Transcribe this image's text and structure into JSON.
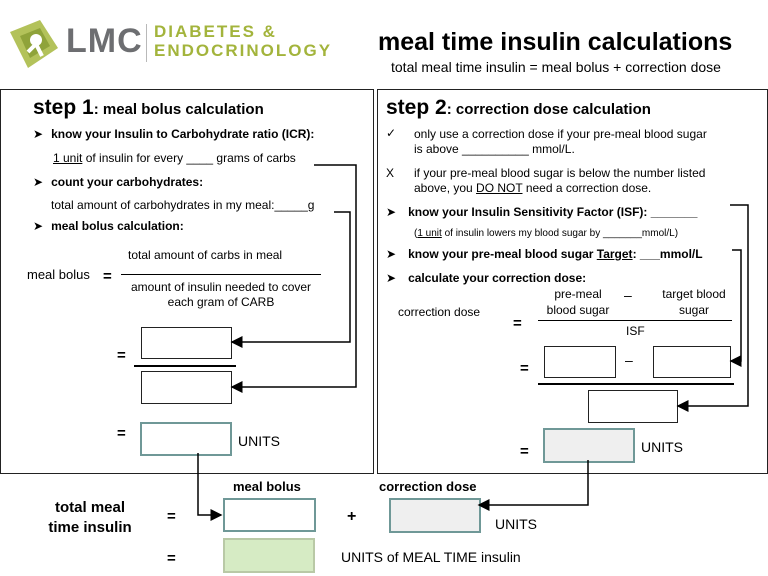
{
  "header": {
    "logo_lmc": "LMC",
    "logo_line1": "DIABETES &",
    "logo_line2": "ENDOCRINOLOGY",
    "title": "meal time insulin calculations",
    "subtitle": "total meal time insulin = meal bolus + correction dose"
  },
  "step1": {
    "heading_num": "step 1",
    "heading_text": ": meal bolus calculation",
    "icr_label": "know your Insulin to Carbohydrate ratio (ICR):",
    "icr_unit": "1 unit",
    "icr_rest": " of insulin for every ____ grams of carbs",
    "count_label": "count your carbohydrates:",
    "count_text": "total amount of carbohydrates in my meal:_____g",
    "bolus_label": "meal bolus calculation:",
    "bolus_lhs": "meal bolus",
    "equals": "=",
    "numerator": "total amount of carbs in meal",
    "denominator_1": "amount of insulin needed to cover",
    "denominator_2": "each gram of CARB",
    "units": "UNITS"
  },
  "step2": {
    "heading_num": "step 2",
    "heading_text": ": correction dose calculation",
    "check_mark": "✓",
    "check_line1": "only use a correction dose if your pre-meal blood sugar",
    "check_line2": "is above __________ mmol/L.",
    "x_mark": "X",
    "x_line1": "if your pre-meal blood sugar is below the number listed",
    "x_line2_pre": "above, you ",
    "x_line2_u": "DO NOT",
    "x_line2_post": " need a correction dose.",
    "isf_label": "know your Insulin Sensitivity Factor (ISF): _______",
    "isf_unit": "1 unit",
    "isf_rest": " of insulin lowers my blood sugar by _______mmol/L)",
    "isf_open": "(",
    "target_pre": "know your pre-meal  blood sugar ",
    "target_u": "Target",
    "target_post": ": ___mmol/L",
    "calc_label": "calculate your correction dose:",
    "corr_lhs": "correction dose",
    "equals": "=",
    "premeal_1": "pre-meal",
    "premeal_2": "blood sugar",
    "minus": "–",
    "target_1": "target blood",
    "target_2": "sugar",
    "isf": "ISF",
    "units": "UNITS"
  },
  "bottom": {
    "total_line1": "total meal",
    "total_line2": "time insulin",
    "equals": "=",
    "plus": "+",
    "meal_bolus_label": "meal bolus",
    "correction_label": "correction dose",
    "units": "UNITS",
    "final_units": "UNITS of MEAL TIME insulin"
  },
  "bullet": "➤",
  "colors": {
    "logo_green": "#9aae3c",
    "logo_gray": "#6d6e71",
    "teal_box": "#6f9897",
    "green_fill": "#d6ebc4",
    "gray_fill": "#efefef"
  }
}
